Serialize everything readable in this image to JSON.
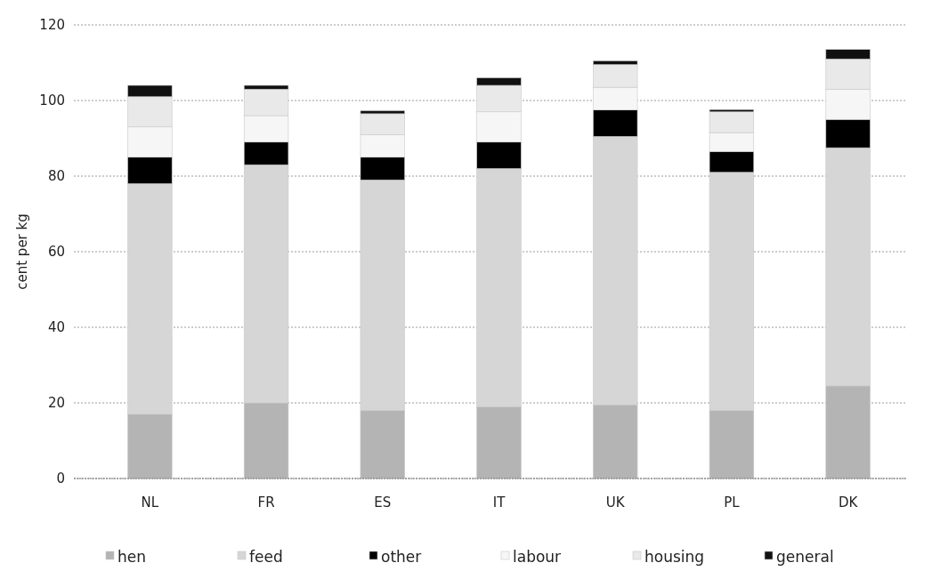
{
  "chart_data": {
    "type": "bar",
    "stacked": true,
    "ylabel": "cent per kg",
    "categories": [
      "NL",
      "FR",
      "ES",
      "IT",
      "UK",
      "PL",
      "DK"
    ],
    "series": [
      {
        "name": "hen",
        "color": "#b4b4b4",
        "values": [
          17,
          20,
          18,
          19,
          19.5,
          18,
          24.5
        ]
      },
      {
        "name": "feed",
        "color": "#d6d6d6",
        "values": [
          61,
          63,
          61,
          63,
          71,
          63,
          63
        ]
      },
      {
        "name": "other",
        "color": "#000000",
        "values": [
          7,
          6,
          6,
          7,
          7,
          5.5,
          7.5
        ]
      },
      {
        "name": "labour",
        "color": "#f6f6f6",
        "values": [
          8,
          7,
          6,
          8,
          6,
          5,
          8
        ]
      },
      {
        "name": "housing",
        "color": "#e9e9e9",
        "values": [
          8,
          7,
          5.5,
          7,
          6,
          5.5,
          8
        ]
      },
      {
        "name": "general",
        "color": "#111111",
        "values": [
          3,
          1,
          0.8,
          2,
          1,
          0.6,
          2.5
        ]
      }
    ],
    "ylim": [
      0,
      120
    ],
    "yticks": [
      0,
      20,
      40,
      60,
      80,
      100,
      120
    ],
    "grid": "y",
    "legend": "bottom"
  }
}
